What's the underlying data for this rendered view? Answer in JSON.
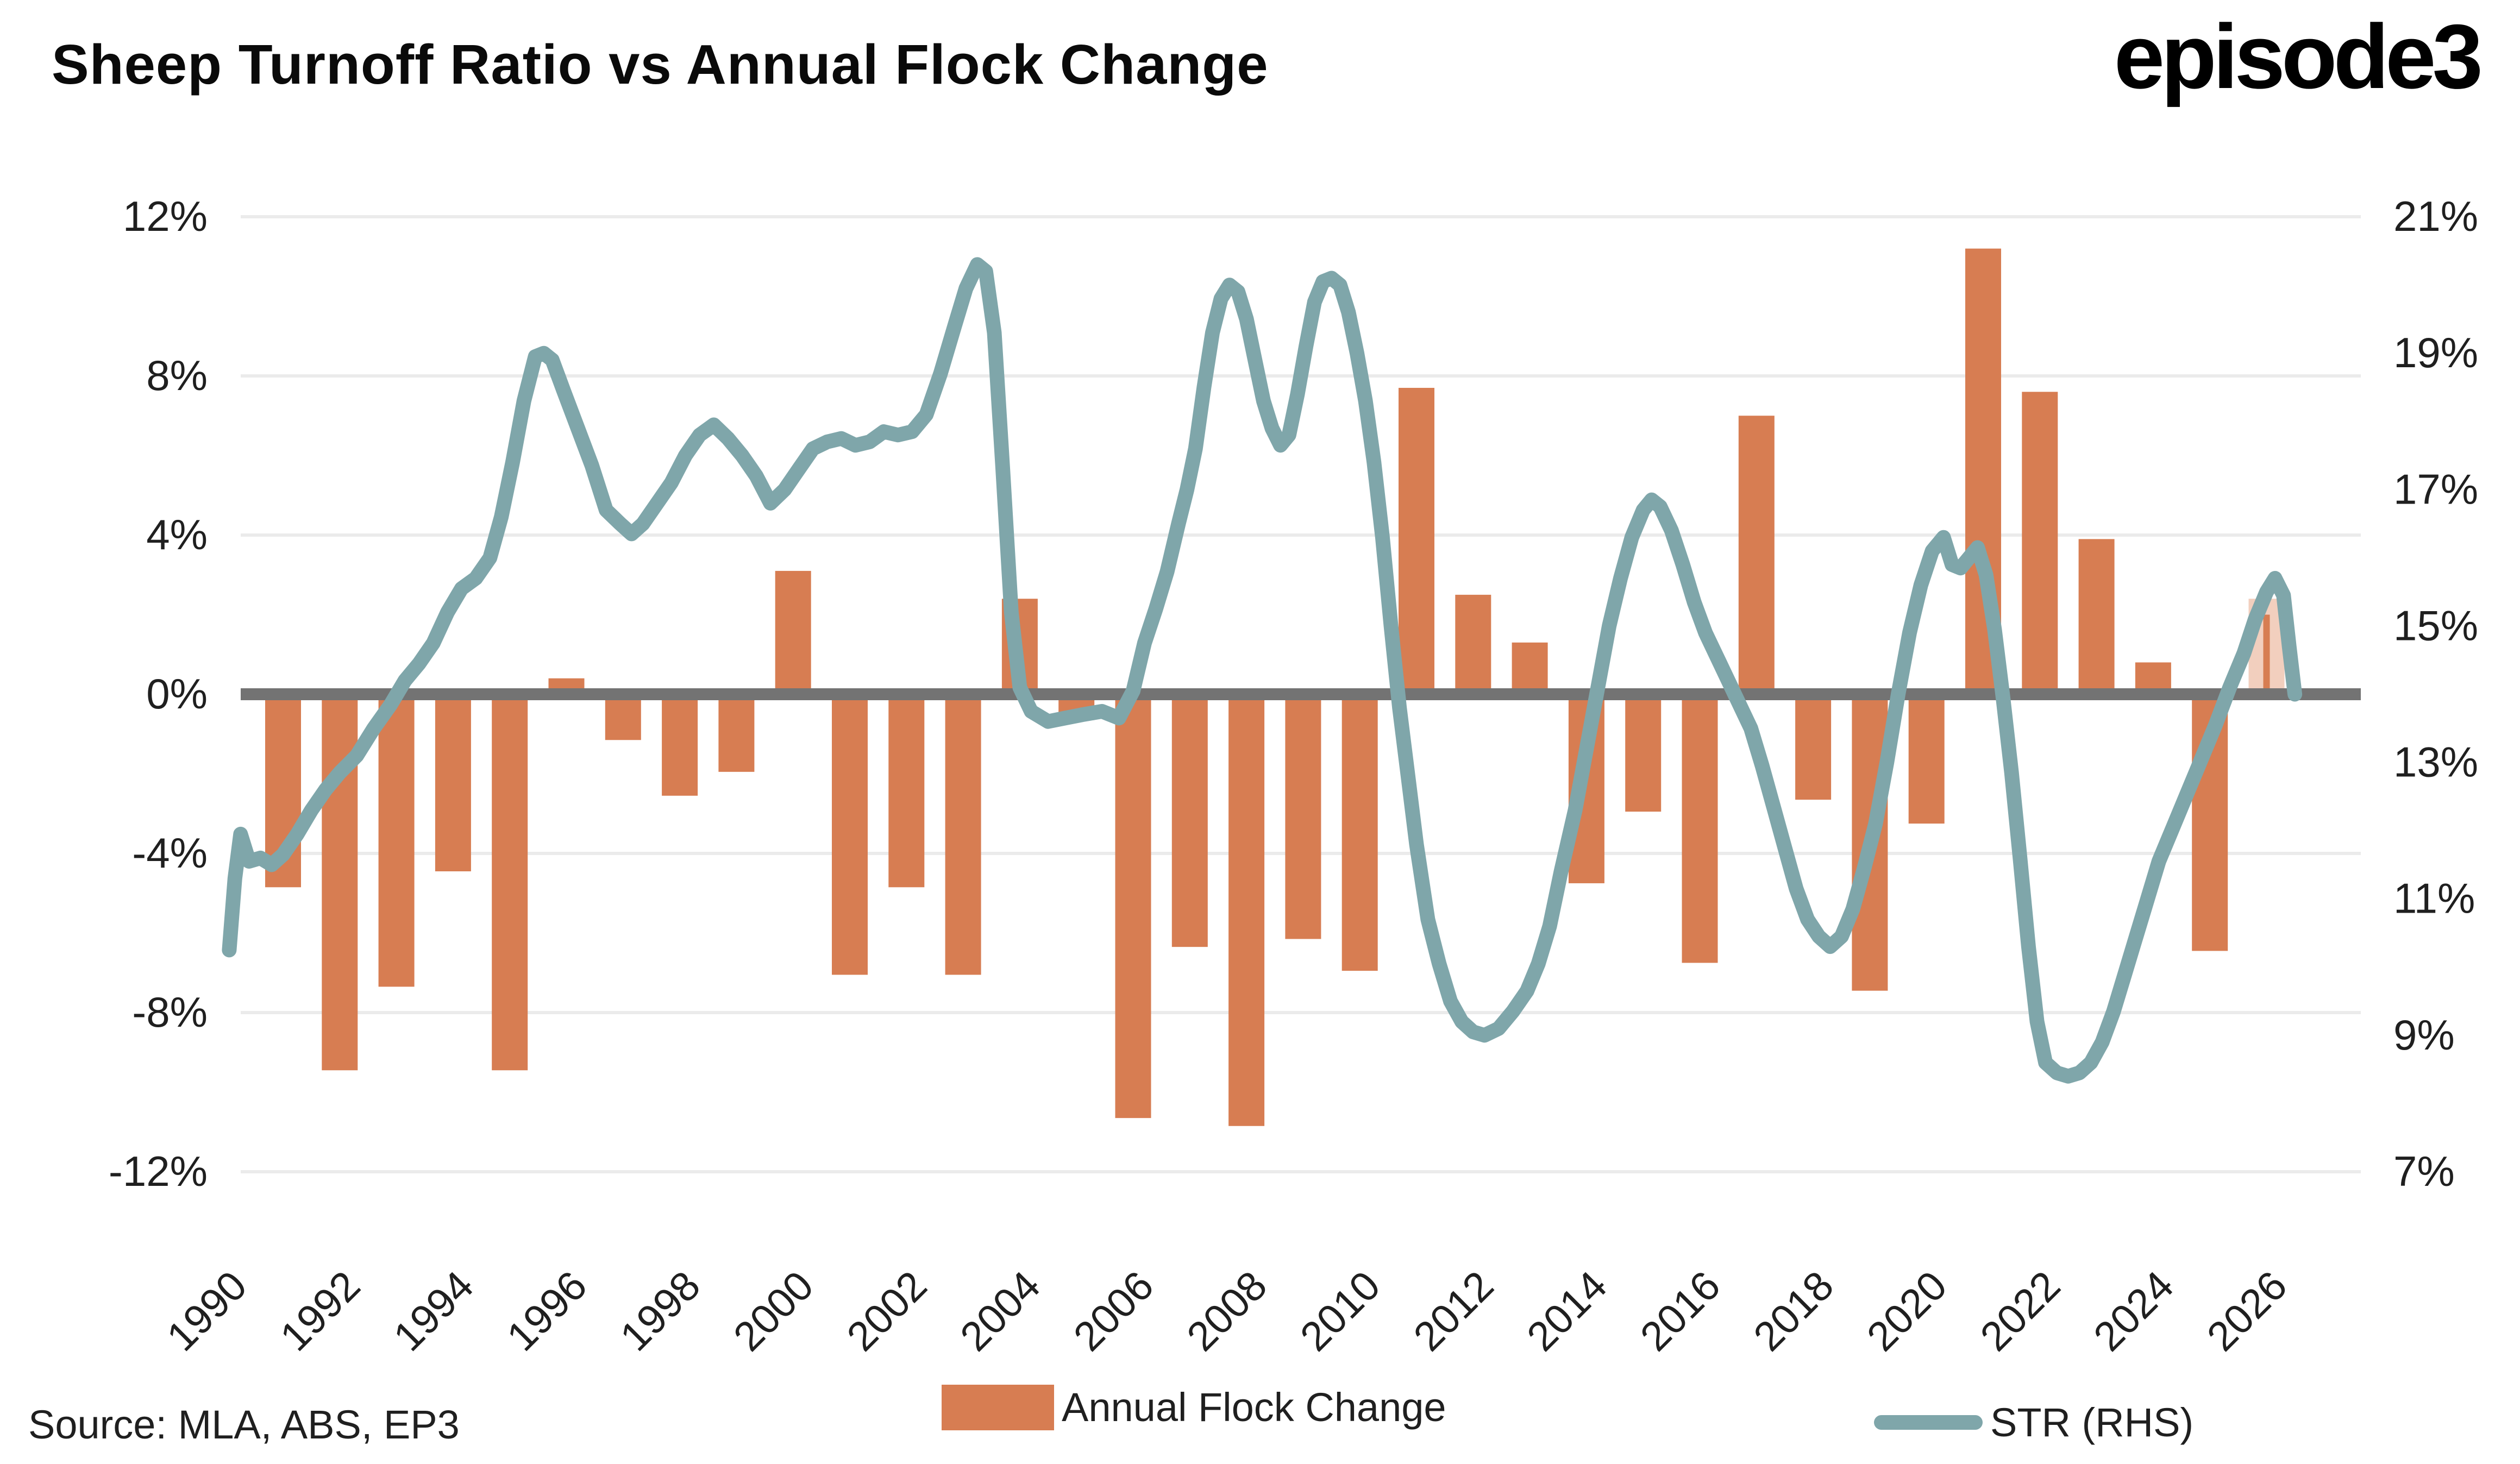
{
  "header": {
    "title": "Sheep Turnoff Ratio vs Annual Flock Change",
    "logo_text": "episode3"
  },
  "footer": {
    "source": "Source: MLA, ABS, EP3"
  },
  "legend": {
    "bars_label": "Annual Flock Change",
    "line_label": "STR (RHS)"
  },
  "colors": {
    "bar": "#d77d52",
    "bar_forecast": "#f2cfbe",
    "line": "#7fa6aa",
    "zero_line": "#737373",
    "grid": "#ebebeb",
    "text": "#1f1f1f",
    "title": "#0a0a0a"
  },
  "chart_data": {
    "type": "bar+line",
    "title": "Sheep Turnoff Ratio vs Annual Flock Change",
    "left_axis": {
      "series": "Annual Flock Change",
      "tick_labels": [
        "12%",
        "8%",
        "4%",
        "0%",
        "-4%",
        "-8%",
        "-12%"
      ],
      "tick_values": [
        12,
        8,
        4,
        0,
        -4,
        -8,
        -12
      ],
      "ylim": [
        -13.5,
        13.5
      ],
      "grid": true
    },
    "right_axis": {
      "series": "STR (RHS)",
      "tick_labels": [
        "21%",
        "19%",
        "17%",
        "15%",
        "13%",
        "11%",
        "9%",
        "7%"
      ],
      "tick_values": [
        21,
        19,
        17,
        15,
        13,
        11,
        9,
        7
      ],
      "ylim": [
        6.1,
        21.9
      ]
    },
    "x_axis": {
      "tick_labels": [
        "1990",
        "1992",
        "1994",
        "1996",
        "1998",
        "2000",
        "2002",
        "2004",
        "2006",
        "2008",
        "2010",
        "2012",
        "2014",
        "2016",
        "2018",
        "2020",
        "2022",
        "2024",
        "2026"
      ],
      "tick_years": [
        1990,
        1992,
        1994,
        1996,
        1998,
        2000,
        2002,
        2004,
        2006,
        2008,
        2010,
        2012,
        2014,
        2016,
        2018,
        2020,
        2022,
        2024,
        2026
      ]
    },
    "bars": {
      "name": "Annual Flock Change",
      "axis": "left",
      "years": [
        1991,
        1992,
        1993,
        1994,
        1995,
        1996,
        1997,
        1998,
        1999,
        2000,
        2001,
        2002,
        2003,
        2004,
        2005,
        2006,
        2007,
        2008,
        2009,
        2010,
        2011,
        2012,
        2013,
        2014,
        2015,
        2016,
        2017,
        2018,
        2019,
        2020,
        2021,
        2022,
        2023,
        2024,
        2025,
        2026
      ],
      "values": [
        -4.7,
        -9.3,
        -7.2,
        -4.3,
        -9.3,
        0.4,
        -1.0,
        -2.4,
        -1.8,
        3.1,
        -6.9,
        -4.7,
        -6.9,
        2.4,
        -0.5,
        -10.5,
        -6.2,
        -10.7,
        -6.0,
        -6.8,
        7.7,
        2.5,
        1.3,
        -4.6,
        -2.8,
        -6.6,
        7.0,
        -2.5,
        -7.3,
        -3.1,
        11.2,
        7.6,
        3.9,
        0.8,
        -6.3,
        2.4
      ],
      "forecast_year": 2026,
      "forecast_value": 2.4,
      "forecast_inner_actual": 2.0
    },
    "line": {
      "name": "STR (RHS)",
      "axis": "right",
      "points": [
        [
          1990.05,
          10.25
        ],
        [
          1990.15,
          11.3
        ],
        [
          1990.25,
          11.95
        ],
        [
          1990.4,
          11.55
        ],
        [
          1990.6,
          11.6
        ],
        [
          1990.8,
          11.5
        ],
        [
          1991.0,
          11.65
        ],
        [
          1991.25,
          11.95
        ],
        [
          1991.5,
          12.3
        ],
        [
          1991.75,
          12.6
        ],
        [
          1992.0,
          12.85
        ],
        [
          1992.3,
          13.1
        ],
        [
          1992.6,
          13.5
        ],
        [
          1992.9,
          13.85
        ],
        [
          1993.15,
          14.2
        ],
        [
          1993.4,
          14.45
        ],
        [
          1993.65,
          14.75
        ],
        [
          1993.9,
          15.2
        ],
        [
          1994.15,
          15.55
        ],
        [
          1994.4,
          15.7
        ],
        [
          1994.65,
          16.0
        ],
        [
          1994.85,
          16.6
        ],
        [
          1995.05,
          17.4
        ],
        [
          1995.25,
          18.3
        ],
        [
          1995.45,
          18.95
        ],
        [
          1995.6,
          19.0
        ],
        [
          1995.75,
          18.9
        ],
        [
          1995.95,
          18.45
        ],
        [
          1996.2,
          17.9
        ],
        [
          1996.45,
          17.35
        ],
        [
          1996.7,
          16.7
        ],
        [
          1996.95,
          16.5
        ],
        [
          1997.15,
          16.35
        ],
        [
          1997.35,
          16.5
        ],
        [
          1997.6,
          16.8
        ],
        [
          1997.85,
          17.1
        ],
        [
          1998.1,
          17.5
        ],
        [
          1998.35,
          17.8
        ],
        [
          1998.6,
          17.95
        ],
        [
          1998.85,
          17.75
        ],
        [
          1999.1,
          17.5
        ],
        [
          1999.35,
          17.2
        ],
        [
          1999.6,
          16.8
        ],
        [
          1999.85,
          17.0
        ],
        [
          2000.1,
          17.3
        ],
        [
          2000.35,
          17.6
        ],
        [
          2000.6,
          17.7
        ],
        [
          2000.85,
          17.75
        ],
        [
          2001.1,
          17.65
        ],
        [
          2001.35,
          17.7
        ],
        [
          2001.6,
          17.85
        ],
        [
          2001.85,
          17.8
        ],
        [
          2002.1,
          17.85
        ],
        [
          2002.35,
          18.1
        ],
        [
          2002.6,
          18.7
        ],
        [
          2002.85,
          19.4
        ],
        [
          2003.05,
          19.95
        ],
        [
          2003.25,
          20.3
        ],
        [
          2003.4,
          20.2
        ],
        [
          2003.55,
          19.3
        ],
        [
          2003.7,
          17.3
        ],
        [
          2003.85,
          15.2
        ],
        [
          2004.0,
          14.1
        ],
        [
          2004.2,
          13.75
        ],
        [
          2004.5,
          13.6
        ],
        [
          2004.8,
          13.65
        ],
        [
          2005.1,
          13.7
        ],
        [
          2005.45,
          13.75
        ],
        [
          2005.75,
          13.65
        ],
        [
          2006.0,
          14.05
        ],
        [
          2006.2,
          14.75
        ],
        [
          2006.4,
          15.25
        ],
        [
          2006.6,
          15.8
        ],
        [
          2006.8,
          16.5
        ],
        [
          2006.95,
          17.0
        ],
        [
          2007.1,
          17.6
        ],
        [
          2007.25,
          18.5
        ],
        [
          2007.4,
          19.3
        ],
        [
          2007.55,
          19.8
        ],
        [
          2007.7,
          20.0
        ],
        [
          2007.85,
          19.9
        ],
        [
          2008.0,
          19.5
        ],
        [
          2008.15,
          18.9
        ],
        [
          2008.3,
          18.3
        ],
        [
          2008.45,
          17.9
        ],
        [
          2008.6,
          17.65
        ],
        [
          2008.75,
          17.8
        ],
        [
          2008.9,
          18.4
        ],
        [
          2009.05,
          19.1
        ],
        [
          2009.2,
          19.75
        ],
        [
          2009.35,
          20.05
        ],
        [
          2009.5,
          20.1
        ],
        [
          2009.65,
          20.0
        ],
        [
          2009.8,
          19.6
        ],
        [
          2009.95,
          19.0
        ],
        [
          2010.1,
          18.3
        ],
        [
          2010.25,
          17.4
        ],
        [
          2010.4,
          16.3
        ],
        [
          2010.55,
          15.0
        ],
        [
          2010.7,
          13.8
        ],
        [
          2010.85,
          12.8
        ],
        [
          2011.0,
          11.8
        ],
        [
          2011.2,
          10.7
        ],
        [
          2011.4,
          10.05
        ],
        [
          2011.6,
          9.5
        ],
        [
          2011.8,
          9.2
        ],
        [
          2012.0,
          9.05
        ],
        [
          2012.2,
          9.0
        ],
        [
          2012.45,
          9.1
        ],
        [
          2012.7,
          9.35
        ],
        [
          2012.95,
          9.65
        ],
        [
          2013.15,
          10.05
        ],
        [
          2013.35,
          10.6
        ],
        [
          2013.55,
          11.4
        ],
        [
          2013.8,
          12.3
        ],
        [
          2014.0,
          13.2
        ],
        [
          2014.2,
          14.1
        ],
        [
          2014.4,
          15.0
        ],
        [
          2014.6,
          15.7
        ],
        [
          2014.8,
          16.3
        ],
        [
          2015.0,
          16.7
        ],
        [
          2015.15,
          16.85
        ],
        [
          2015.3,
          16.75
        ],
        [
          2015.5,
          16.4
        ],
        [
          2015.7,
          15.9
        ],
        [
          2015.9,
          15.35
        ],
        [
          2016.1,
          14.9
        ],
        [
          2016.3,
          14.55
        ],
        [
          2016.5,
          14.2
        ],
        [
          2016.7,
          13.85
        ],
        [
          2016.9,
          13.5
        ],
        [
          2017.1,
          12.95
        ],
        [
          2017.3,
          12.35
        ],
        [
          2017.5,
          11.75
        ],
        [
          2017.7,
          11.15
        ],
        [
          2017.9,
          10.7
        ],
        [
          2018.1,
          10.45
        ],
        [
          2018.3,
          10.3
        ],
        [
          2018.5,
          10.45
        ],
        [
          2018.7,
          10.85
        ],
        [
          2018.9,
          11.45
        ],
        [
          2019.1,
          12.1
        ],
        [
          2019.3,
          13.0
        ],
        [
          2019.5,
          14.0
        ],
        [
          2019.7,
          14.9
        ],
        [
          2019.9,
          15.6
        ],
        [
          2020.1,
          16.1
        ],
        [
          2020.3,
          16.3
        ],
        [
          2020.45,
          15.9
        ],
        [
          2020.6,
          15.85
        ],
        [
          2020.75,
          16.0
        ],
        [
          2020.9,
          16.15
        ],
        [
          2021.05,
          15.75
        ],
        [
          2021.2,
          14.95
        ],
        [
          2021.35,
          13.95
        ],
        [
          2021.5,
          12.85
        ],
        [
          2021.65,
          11.6
        ],
        [
          2021.8,
          10.3
        ],
        [
          2021.95,
          9.2
        ],
        [
          2022.1,
          8.6
        ],
        [
          2022.3,
          8.45
        ],
        [
          2022.5,
          8.4
        ],
        [
          2022.7,
          8.45
        ],
        [
          2022.9,
          8.6
        ],
        [
          2023.1,
          8.9
        ],
        [
          2023.3,
          9.35
        ],
        [
          2023.5,
          9.9
        ],
        [
          2023.7,
          10.45
        ],
        [
          2023.9,
          11.0
        ],
        [
          2024.1,
          11.55
        ],
        [
          2024.35,
          12.05
        ],
        [
          2024.6,
          12.55
        ],
        [
          2024.85,
          13.05
        ],
        [
          2025.1,
          13.55
        ],
        [
          2025.35,
          14.1
        ],
        [
          2025.6,
          14.6
        ],
        [
          2025.8,
          15.1
        ],
        [
          2026.0,
          15.5
        ],
        [
          2026.15,
          15.7
        ],
        [
          2026.3,
          15.45
        ],
        [
          2026.4,
          14.7
        ],
        [
          2026.5,
          14.0
        ]
      ]
    }
  }
}
